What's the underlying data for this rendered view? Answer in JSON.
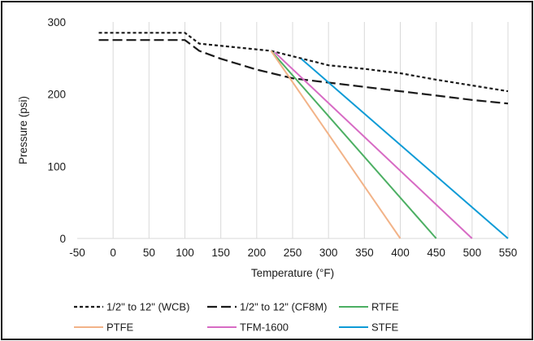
{
  "chart_data": {
    "type": "line",
    "title": "",
    "xlabel": "Temperature (°F)",
    "ylabel": "Pressure (psi)",
    "xlim": [
      -50,
      550
    ],
    "ylim": [
      0,
      300
    ],
    "xticks": [
      -50,
      0,
      50,
      100,
      150,
      200,
      250,
      300,
      350,
      400,
      450,
      500,
      550
    ],
    "yticks": [
      0,
      100,
      200,
      300
    ],
    "grid": "vertical",
    "legend_position": "bottom",
    "series": [
      {
        "name": "1/2\" to 12\" (WCB)",
        "color": "#1a1a1a",
        "dash": "dotted-dash",
        "x": [
          -20,
          100,
          120,
          220,
          260,
          300,
          350,
          400,
          450,
          500,
          550
        ],
        "y": [
          285,
          285,
          270,
          260,
          250,
          240,
          235,
          229,
          220,
          212,
          204
        ]
      },
      {
        "name": "1/2\" to 12\" (CF8M)",
        "color": "#1a1a1a",
        "dash": "long-dash",
        "x": [
          -20,
          100,
          120,
          150,
          200,
          250,
          300,
          350,
          400,
          450,
          500,
          550
        ],
        "y": [
          275,
          275,
          260,
          249,
          234,
          222,
          216,
          210,
          204,
          198,
          192,
          187
        ]
      },
      {
        "name": "RTFE",
        "color": "#4caf63",
        "dash": "solid",
        "x": [
          220,
          450
        ],
        "y": [
          260,
          0
        ]
      },
      {
        "name": "PTFE",
        "color": "#f2b388",
        "dash": "solid",
        "x": [
          220,
          400
        ],
        "y": [
          260,
          0
        ]
      },
      {
        "name": "TFM-1600",
        "color": "#d76bc4",
        "dash": "solid",
        "x": [
          225,
          500
        ],
        "y": [
          258,
          0
        ]
      },
      {
        "name": "STFE",
        "color": "#0e9bd6",
        "dash": "solid",
        "x": [
          262,
          550
        ],
        "y": [
          249,
          0
        ]
      }
    ],
    "legend_rows": [
      [
        "1/2\" to 12\" (WCB)",
        "1/2\" to 12\" (CF8M)",
        "RTFE"
      ],
      [
        "PTFE",
        "TFM-1600",
        "STFE"
      ]
    ]
  }
}
